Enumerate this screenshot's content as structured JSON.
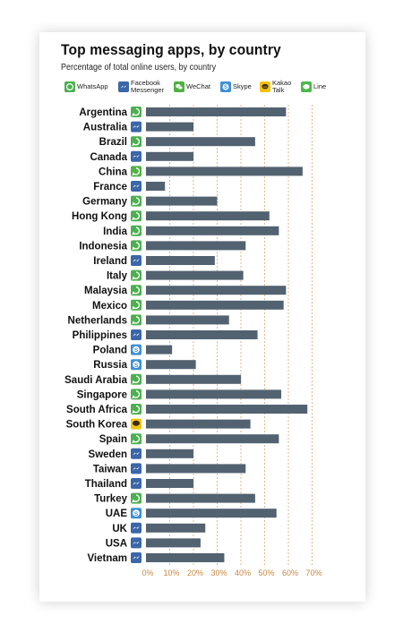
{
  "title": "Top messaging apps, by country",
  "subtitle": "Percentage of total online users, by country",
  "colors": {
    "bar": "#536270",
    "grid": "#e0a46a",
    "tick": "#c9853e",
    "whatsapp": "#4caf50",
    "facebook_messenger": "#3b66a8",
    "wechat": "#52b044",
    "skype": "#3d8fd4",
    "kakao": "#f2c40f",
    "line": "#4cb848"
  },
  "legend": [
    {
      "key": "whatsapp",
      "label": "WhatsApp",
      "icon": "whatsapp-icon"
    },
    {
      "key": "facebook_messenger",
      "label": "Facebook\nMessenger",
      "icon": "messenger-icon"
    },
    {
      "key": "wechat",
      "label": "WeChat",
      "icon": "wechat-icon"
    },
    {
      "key": "skype",
      "label": "Skype",
      "icon": "skype-icon"
    },
    {
      "key": "kakao",
      "label": "Kakao\nTalk",
      "icon": "kakao-icon"
    },
    {
      "key": "line",
      "label": "Line",
      "icon": "line-icon"
    }
  ],
  "chart_data": {
    "type": "bar",
    "orientation": "horizontal",
    "title": "Top messaging apps, by country",
    "subtitle": "Percentage of total online users, by country",
    "xlim": [
      0,
      70
    ],
    "xticks": [
      "0%",
      "10%",
      "20%",
      "30%",
      "40%",
      "50%",
      "60%",
      "70%"
    ],
    "grid": "vertical dashed",
    "legend_position": "top",
    "categories": [
      "Argentina",
      "Australia",
      "Brazil",
      "Canada",
      "China",
      "France",
      "Germany",
      "Hong Kong",
      "India",
      "Indonesia",
      "Ireland",
      "Italy",
      "Malaysia",
      "Mexico",
      "Netherlands",
      "Philippines",
      "Poland",
      "Russia",
      "Saudi Arabia",
      "Singapore",
      "South Africa",
      "South Korea",
      "Spain",
      "Sweden",
      "Taiwan",
      "Thailand",
      "Turkey",
      "UAE",
      "UK",
      "USA",
      "Vietnam"
    ],
    "values": [
      59,
      20,
      46,
      20,
      66,
      8,
      30,
      52,
      56,
      42,
      29,
      41,
      59,
      58,
      35,
      47,
      11,
      21,
      40,
      57,
      68,
      44,
      56,
      20,
      42,
      20,
      46,
      55,
      25,
      23,
      33
    ],
    "top_app": [
      "whatsapp",
      "facebook_messenger",
      "whatsapp",
      "facebook_messenger",
      "wechat",
      "facebook_messenger",
      "whatsapp",
      "whatsapp",
      "whatsapp",
      "whatsapp",
      "facebook_messenger",
      "whatsapp",
      "whatsapp",
      "whatsapp",
      "whatsapp",
      "facebook_messenger",
      "skype",
      "skype",
      "whatsapp",
      "whatsapp",
      "whatsapp",
      "kakao",
      "whatsapp",
      "facebook_messenger",
      "facebook_messenger",
      "facebook_messenger",
      "whatsapp",
      "skype",
      "facebook_messenger",
      "facebook_messenger",
      "facebook_messenger"
    ]
  }
}
